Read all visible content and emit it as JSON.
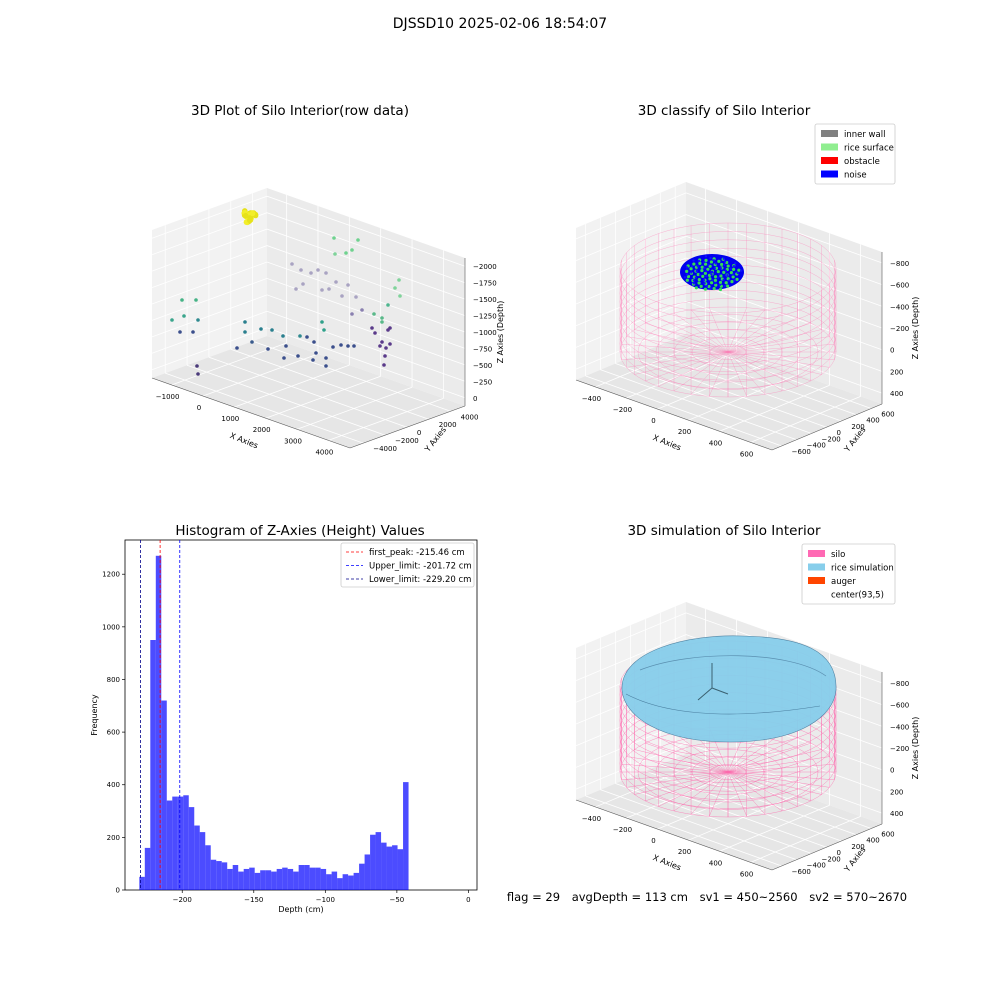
{
  "figure": {
    "title": "DJSSD10 2025-02-06 18:54:07"
  },
  "footer": {
    "flag": "flag = 29",
    "avg_depth": "avgDepth = 113 cm",
    "sv1": "sv1 = 450~2560",
    "sv2": "sv2 = 570~2670"
  },
  "chart_data": [
    {
      "type": "scatter",
      "title": "3D Plot of Silo Interior(row data)",
      "xlabel": "X Axies",
      "ylabel": "Y Axies",
      "zlabel": "Z Axies (Depth)",
      "x_ticks": [
        "−1000",
        "0",
        "1000",
        "2000",
        "3000",
        "4000"
      ],
      "y_ticks": [
        "−4000",
        "−2000",
        "0",
        "2000",
        "4000"
      ],
      "z_ticks": [
        "0",
        "−250",
        "−500",
        "−750",
        "−1000",
        "−1250",
        "−1500",
        "−1750",
        "−2000"
      ]
    },
    {
      "type": "scatter",
      "title": "3D classify of Silo Interior",
      "xlabel": "X Axies",
      "ylabel": "Y Axies",
      "zlabel": "Z Axies (Depth)",
      "x_ticks": [
        "−400",
        "−200",
        "0",
        "200",
        "400",
        "600"
      ],
      "y_ticks": [
        "−600",
        "−400",
        "−200",
        "0",
        "200",
        "400",
        "600"
      ],
      "z_ticks": [
        "400",
        "200",
        "0",
        "−200",
        "−400",
        "−600",
        "−800"
      ],
      "legend": [
        {
          "label": "inner wall",
          "color": "#808080"
        },
        {
          "label": "rice surface",
          "color": "#90ee90"
        },
        {
          "label": "obstacle",
          "color": "#ff0000"
        },
        {
          "label": "noise",
          "color": "#0000ff"
        }
      ]
    },
    {
      "type": "bar",
      "title": "Histogram of Z-Axies (Height) Values",
      "xlabel": "Depth (cm)",
      "ylabel": "Frequency",
      "xlim": [
        -240,
        6
      ],
      "ylim": [
        0,
        1330
      ],
      "x_ticks": [
        -200,
        -150,
        -100,
        -50,
        0
      ],
      "y_ticks": [
        0,
        200,
        400,
        600,
        800,
        1000,
        1200
      ],
      "bin_start": -230,
      "bin_width": 3.84,
      "values": [
        50,
        160,
        950,
        1270,
        720,
        340,
        355,
        355,
        360,
        315,
        245,
        220,
        170,
        115,
        110,
        105,
        80,
        95,
        70,
        80,
        85,
        65,
        75,
        75,
        70,
        80,
        85,
        80,
        70,
        95,
        95,
        85,
        85,
        80,
        60,
        70,
        45,
        60,
        55,
        65,
        100,
        135,
        210,
        220,
        180,
        165,
        170,
        155,
        410
      ],
      "color": "#0000ff",
      "lines": [
        {
          "x": -215.46,
          "color": "#ff0000",
          "label": "first_peak: -215.46 cm"
        },
        {
          "x": -201.72,
          "color": "#0000ff",
          "label": "Upper_limit: -201.72 cm"
        },
        {
          "x": -229.2,
          "color": "#00008b",
          "label": "Lower_limit: -229.20 cm"
        }
      ]
    },
    {
      "type": "scatter",
      "title": "3D simulation of Silo Interior",
      "xlabel": "X Axies",
      "ylabel": "Y Axies",
      "zlabel": "Z Axies (Depth)",
      "x_ticks": [
        "−400",
        "−200",
        "0",
        "200",
        "400",
        "600"
      ],
      "y_ticks": [
        "−600",
        "−400",
        "−200",
        "0",
        "200",
        "400",
        "600"
      ],
      "z_ticks": [
        "400",
        "200",
        "0",
        "−200",
        "−400",
        "−600",
        "−800"
      ],
      "legend": [
        {
          "label": "silo",
          "color": "#ff69b4"
        },
        {
          "label": "rice simulation",
          "color": "#87ceeb"
        },
        {
          "label": "auger",
          "color": "#ff4500"
        },
        {
          "label": "center(93,5)",
          "color": "#ffffff"
        }
      ]
    }
  ]
}
